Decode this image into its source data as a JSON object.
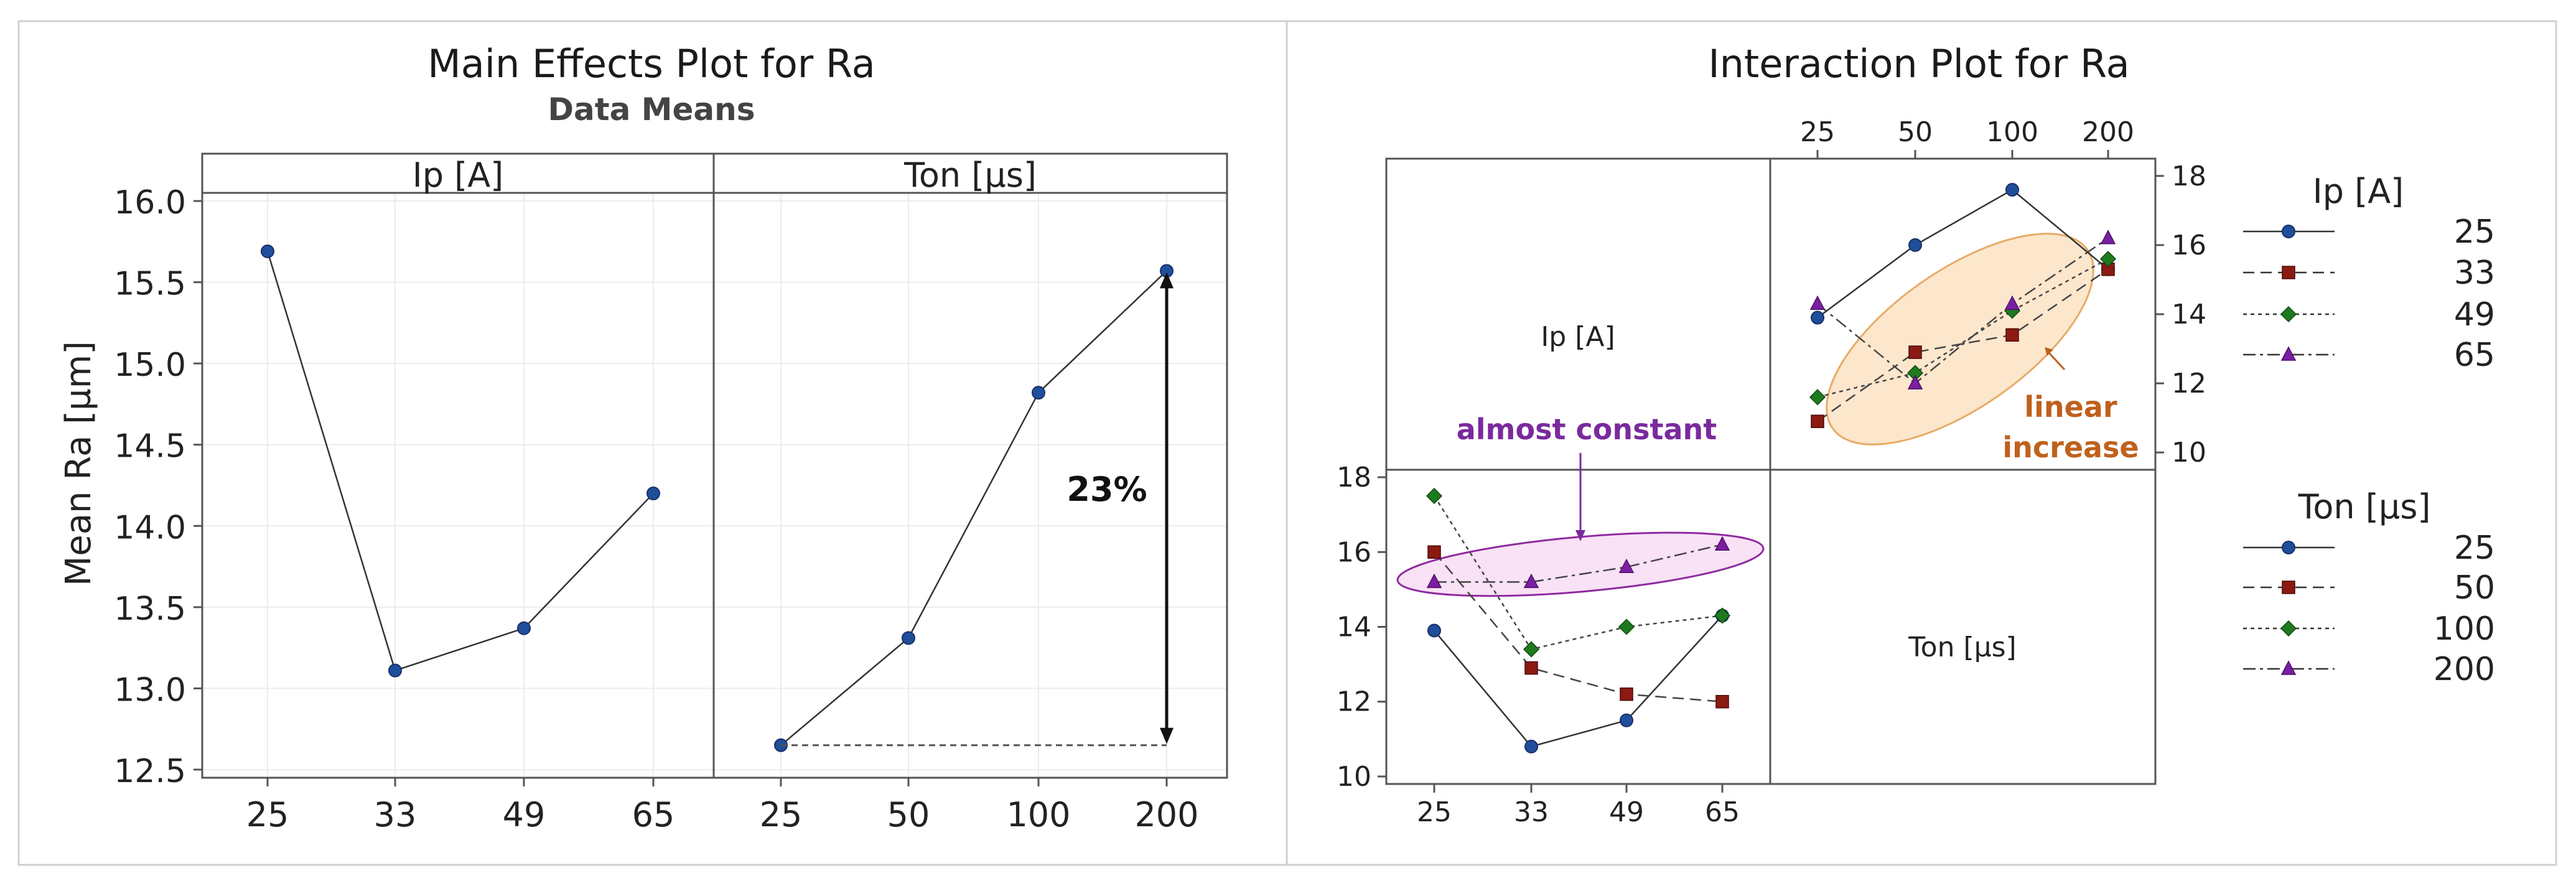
{
  "colors": {
    "blue": "#1f4e9b",
    "red": "#8b1a12",
    "green": "#1f7a1f",
    "purple": "#7b1fa2",
    "orange_fill": "#fbe3c4",
    "orange_stroke": "#e8ab66",
    "orange_text": "#c0601c",
    "pink_fill": "#f8dcf4",
    "pink_stroke": "#8e2a9f",
    "purple_text": "#7a2a9e"
  },
  "chart_data": [
    {
      "type": "line",
      "title": "Main Effects Plot for Ra",
      "subtitle": "Data Means",
      "ylabel": "Mean Ra [µm]",
      "ylim": [
        12.45,
        16.05
      ],
      "yticks": [
        "16.0",
        "15.5",
        "15.0",
        "14.5",
        "14.0",
        "13.5",
        "13.0",
        "12.5"
      ],
      "panels": [
        {
          "header": "Ip [A]",
          "categories": [
            "25",
            "33",
            "49",
            "65"
          ],
          "values": [
            15.69,
            13.11,
            13.37,
            14.2
          ]
        },
        {
          "header": "Ton [µs]",
          "categories": [
            "25",
            "50",
            "100",
            "200"
          ],
          "values": [
            12.65,
            13.31,
            14.82,
            15.57
          ]
        }
      ],
      "annotations": {
        "percent_label": "23%"
      }
    },
    {
      "type": "line",
      "title": "Interaction Plot for Ra",
      "diagonal_labels": {
        "ip": "Ip [A]",
        "ton": "Ton [µs]"
      },
      "top_right": {
        "description": "Ra vs Ton by Ip",
        "x_categories": [
          "25",
          "50",
          "100",
          "200"
        ],
        "yticks": [
          "18",
          "16",
          "14",
          "12",
          "10"
        ],
        "ylim": [
          9.5,
          18.5
        ],
        "series": [
          {
            "name": "25",
            "values": [
              13.9,
              16.0,
              17.6,
              15.3
            ]
          },
          {
            "name": "33",
            "values": [
              10.9,
              12.9,
              13.4,
              15.3
            ]
          },
          {
            "name": "49",
            "values": [
              11.6,
              12.3,
              14.1,
              15.6
            ]
          },
          {
            "name": "65",
            "values": [
              14.3,
              12.0,
              14.3,
              16.2
            ]
          }
        ],
        "annotation": [
          "linear",
          "increase"
        ]
      },
      "bottom_left": {
        "description": "Ra vs Ip by Ton",
        "x_categories": [
          "25",
          "33",
          "49",
          "65"
        ],
        "yticks": [
          "18",
          "16",
          "14",
          "12",
          "10"
        ],
        "ylim": [
          9.8,
          18.2
        ],
        "series": [
          {
            "name": "25",
            "values": [
              13.9,
              10.8,
              11.5,
              14.3
            ]
          },
          {
            "name": "50",
            "values": [
              16.0,
              12.9,
              12.2,
              12.0
            ]
          },
          {
            "name": "100",
            "values": [
              17.5,
              13.4,
              14.0,
              14.3
            ]
          },
          {
            "name": "200",
            "values": [
              15.2,
              15.2,
              15.6,
              16.2
            ]
          }
        ],
        "annotation": "almost constant"
      },
      "legends": [
        {
          "title": "Ip [A]",
          "items": [
            "25",
            "33",
            "49",
            "65"
          ]
        },
        {
          "title": "Ton [µs]",
          "items": [
            "25",
            "50",
            "100",
            "200"
          ]
        }
      ]
    }
  ]
}
